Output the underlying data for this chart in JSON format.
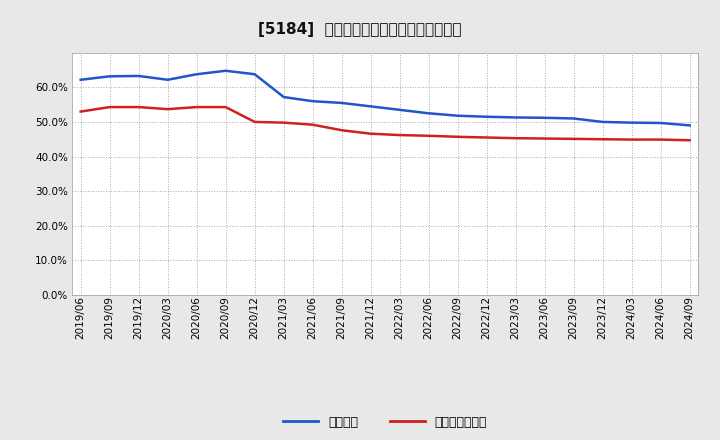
{
  "title": "[5184]  固定比率、固定長期適合率の推移",
  "blue_label": "固定比率",
  "red_label": "固定長期適合率",
  "blue_color": "#2255cc",
  "red_color": "#cc2222",
  "figure_bg_color": "#e8e8e8",
  "plot_bg_color": "#ffffff",
  "ylim": [
    0.0,
    0.7
  ],
  "yticks": [
    0.0,
    0.1,
    0.2,
    0.3,
    0.4,
    0.5,
    0.6
  ],
  "x_labels": [
    "2019/06",
    "2019/09",
    "2019/12",
    "2020/03",
    "2020/06",
    "2020/09",
    "2020/12",
    "2021/03",
    "2021/06",
    "2021/09",
    "2021/12",
    "2022/03",
    "2022/06",
    "2022/09",
    "2022/12",
    "2023/03",
    "2023/06",
    "2023/09",
    "2023/12",
    "2024/03",
    "2024/06",
    "2024/09"
  ],
  "blue_values": [
    0.622,
    0.632,
    0.633,
    0.622,
    0.638,
    0.648,
    0.638,
    0.572,
    0.56,
    0.555,
    0.545,
    0.535,
    0.525,
    0.518,
    0.515,
    0.513,
    0.512,
    0.51,
    0.5,
    0.498,
    0.497,
    0.49
  ],
  "red_values": [
    0.53,
    0.543,
    0.543,
    0.537,
    0.543,
    0.543,
    0.5,
    0.498,
    0.492,
    0.476,
    0.466,
    0.462,
    0.46,
    0.457,
    0.455,
    0.453,
    0.452,
    0.451,
    0.45,
    0.449,
    0.449,
    0.447
  ],
  "title_fontsize": 11,
  "tick_fontsize": 7.5,
  "legend_fontsize": 9
}
